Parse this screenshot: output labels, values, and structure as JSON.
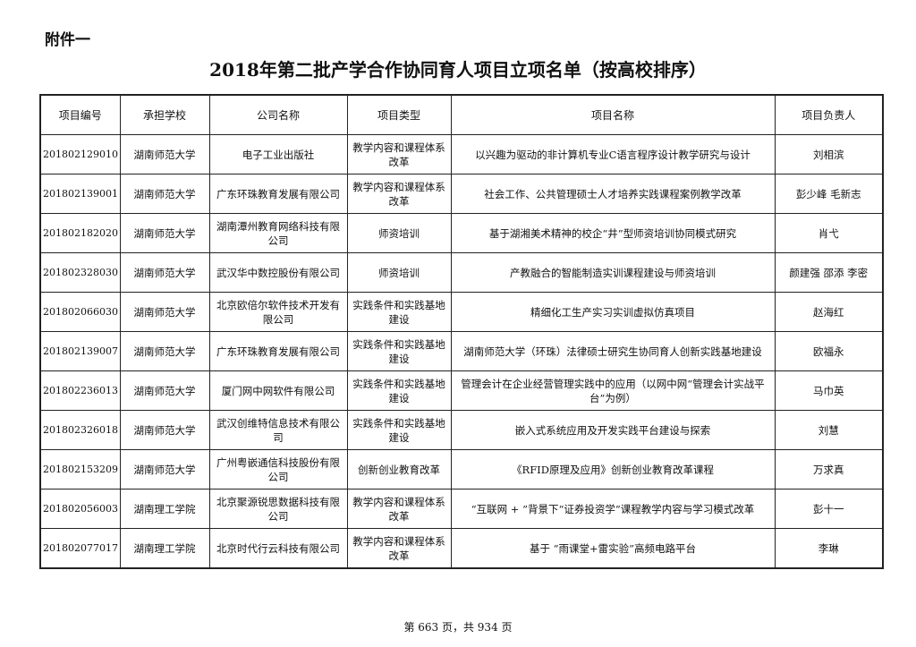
{
  "attachment_label": "附件一",
  "title": "2018年第二批产学合作协同育人项目立项名单（按高校排序）",
  "table": {
    "headers": [
      "项目编号",
      "承担学校",
      "公司名称",
      "项目类型",
      "项目名称",
      "项目负责人"
    ],
    "rows": [
      [
        "201802129010",
        "湖南师范大学",
        "电子工业出版社",
        "教学内容和课程体系改革",
        "以兴趣为驱动的非计算机专业C语言程序设计教学研究与设计",
        "刘相滨"
      ],
      [
        "201802139001",
        "湖南师范大学",
        "广东环珠教育发展有限公司",
        "教学内容和课程体系改革",
        "社会工作、公共管理硕士人才培养实践课程案例教学改革",
        "彭少峰 毛新志"
      ],
      [
        "201802182020",
        "湖南师范大学",
        "湖南潭州教育网络科技有限公司",
        "师资培训",
        "基于湖湘美术精神的校企“井”型师资培训协同模式研究",
        "肖弋"
      ],
      [
        "201802328030",
        "湖南师范大学",
        "武汉华中数控股份有限公司",
        "师资培训",
        "产教融合的智能制造实训课程建设与师资培训",
        "颜建强 邵添 李密"
      ],
      [
        "201802066030",
        "湖南师范大学",
        "北京欧倍尔软件技术开发有限公司",
        "实践条件和实践基地建设",
        "精细化工生产实习实训虚拟仿真项目",
        "赵海红"
      ],
      [
        "201802139007",
        "湖南师范大学",
        "广东环珠教育发展有限公司",
        "实践条件和实践基地建设",
        "湖南师范大学（环珠）法律硕士研究生协同育人创新实践基地建设",
        "欧福永"
      ],
      [
        "201802236013",
        "湖南师范大学",
        "厦门网中网软件有限公司",
        "实践条件和实践基地建设",
        "管理会计在企业经营管理实践中的应用（以网中网“管理会计实战平台”为例）",
        "马巾英"
      ],
      [
        "201802326018",
        "湖南师范大学",
        "武汉创维特信息技术有限公司",
        "实践条件和实践基地建设",
        "嵌入式系统应用及开发实践平台建设与探索",
        "刘慧"
      ],
      [
        "201802153209",
        "湖南师范大学",
        "广州粤嵌通信科技股份有限公司",
        "创新创业教育改革",
        "《RFID原理及应用》创新创业教育改革课程",
        "万求真"
      ],
      [
        "201802056003",
        "湖南理工学院",
        "北京聚源锐思数据科技有限公司",
        "教学内容和课程体系改革",
        "“互联网 + ”背景下“证券投资学”课程教学内容与学习模式改革",
        "彭十一"
      ],
      [
        "201802077017",
        "湖南理工学院",
        "北京时代行云科技有限公司",
        "教学内容和课程体系改革",
        "基于 “雨课堂+雷实验”高频电路平台",
        "李琳"
      ]
    ]
  },
  "footer": "第 663 页，共 934 页"
}
